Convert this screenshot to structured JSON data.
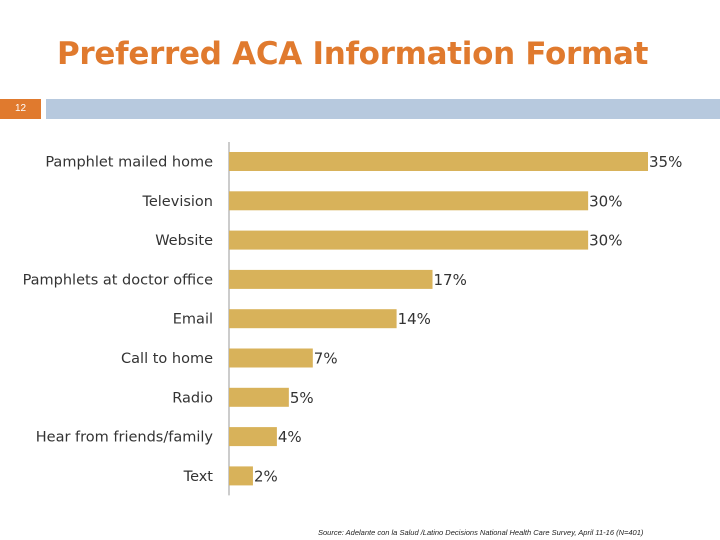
{
  "header": {
    "title": "Preferred ACA Information Format",
    "slide_number": "12"
  },
  "colors": {
    "accent": "#e07a2e",
    "bar": "#d8b25a",
    "header_bar": "#b7c9de"
  },
  "chart_data": {
    "type": "bar",
    "orientation": "horizontal",
    "categories": [
      "Pamphlet mailed home",
      "Television",
      "Website",
      "Pamphlets at doctor office",
      "Email",
      "Call to home",
      "Radio",
      "Hear from friends/family",
      "Text"
    ],
    "values": [
      35,
      30,
      30,
      17,
      14,
      7,
      5,
      4,
      2
    ],
    "value_labels": [
      "35%",
      "30%",
      "30%",
      "17%",
      "14%",
      "7%",
      "5%",
      "4%",
      "2%"
    ],
    "xlim": [
      0,
      35
    ],
    "grid": false,
    "legend": "none"
  },
  "source_note": "Source: Adelante con la Salud /Latino Decisions National Health Care Survey, April 11-16 (N=401)"
}
